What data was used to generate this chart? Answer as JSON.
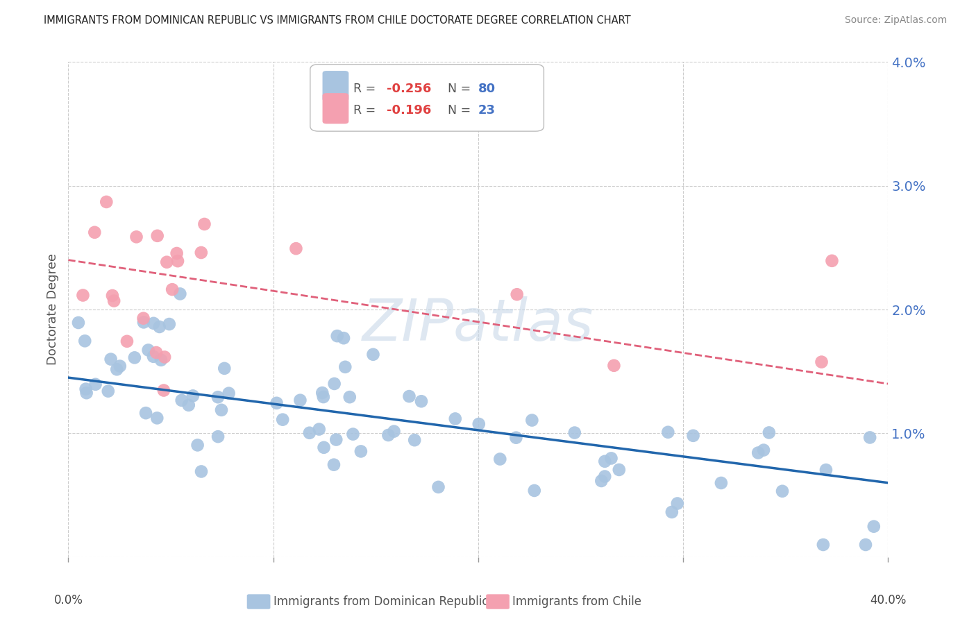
{
  "title": "IMMIGRANTS FROM DOMINICAN REPUBLIC VS IMMIGRANTS FROM CHILE DOCTORATE DEGREE CORRELATION CHART",
  "source": "Source: ZipAtlas.com",
  "ylabel": "Doctorate Degree",
  "xlim": [
    0.0,
    0.4
  ],
  "ylim": [
    0.0,
    0.04
  ],
  "legend_blue_r": "-0.256",
  "legend_blue_n": "80",
  "legend_pink_r": "-0.196",
  "legend_pink_n": "23",
  "legend_label_blue": "Immigrants from Dominican Republic",
  "legend_label_pink": "Immigrants from Chile",
  "blue_color": "#a8c4e0",
  "blue_line_color": "#2166ac",
  "pink_color": "#f4a0b0",
  "pink_line_color": "#e0607a",
  "watermark": "ZIPatlas",
  "blue_line_x": [
    0.0,
    0.4
  ],
  "blue_line_y": [
    0.0145,
    0.006
  ],
  "pink_line_x": [
    0.0,
    0.4
  ],
  "pink_line_y": [
    0.024,
    0.014
  ]
}
